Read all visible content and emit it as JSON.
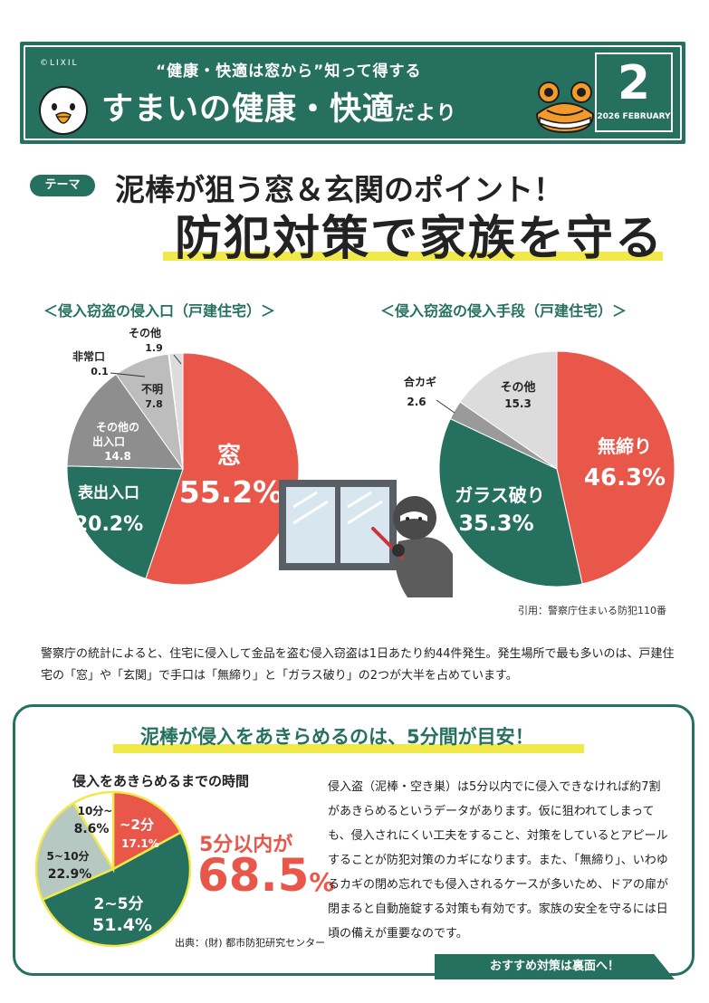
{
  "header": {
    "brand": "©LIXIL",
    "subtitle": "“健康・快適は窓から”知って得する",
    "title_main": "すまいの健康・快適",
    "title_small": "だより",
    "issue_number": "2",
    "issue_date": "2026 FEBRUARY",
    "accent_color": "#26705f"
  },
  "theme": {
    "tag": "テーマ",
    "headline_line1": "泥棒が狙う窓＆玄関のポイント！",
    "headline_line2": "防犯対策で家族を守る"
  },
  "chart_data": [
    {
      "type": "pie",
      "title": "＜侵入窃盗の侵入口（戸建住宅）＞",
      "unit": "%",
      "slices": [
        {
          "label": "窓",
          "value": 55.2,
          "color": "#e8574a"
        },
        {
          "label": "表出入口",
          "value": 20.2,
          "color": "#26705f"
        },
        {
          "label": "その他の出入口",
          "value": 14.8,
          "color": "#8e8e8e"
        },
        {
          "label": "不明",
          "value": 7.8,
          "color": "#bdbdbd"
        },
        {
          "label": "非常口",
          "value": 0.1,
          "color": "#a8a8a8"
        },
        {
          "label": "その他",
          "value": 1.9,
          "color": "#dcdcdc"
        }
      ]
    },
    {
      "type": "pie",
      "title": "＜侵入窃盗の侵入手段（戸建住宅）＞",
      "unit": "%",
      "slices": [
        {
          "label": "無締り",
          "value": 46.3,
          "color": "#e8574a"
        },
        {
          "label": "ガラス破り",
          "value": 35.3,
          "color": "#26705f"
        },
        {
          "label": "合カギ",
          "value": 2.6,
          "color": "#9a9a9a"
        },
        {
          "label": "その他",
          "value": 15.3,
          "color": "#dcdcdc"
        }
      ]
    },
    {
      "type": "pie",
      "title": "侵入をあきらめるまでの時間",
      "unit": "%",
      "slices": [
        {
          "label": "~2分",
          "value": 17.1,
          "color": "#e8574a"
        },
        {
          "label": "2~5分",
          "value": 51.4,
          "color": "#26705f"
        },
        {
          "label": "5~10分",
          "value": 22.9,
          "color": "#b5c8c1"
        },
        {
          "label": "10分~",
          "value": 8.6,
          "color": "#ffffff"
        }
      ]
    }
  ],
  "source1": "引用：警察庁住まいる防犯110番",
  "paragraph1": "警察庁の統計によると、住宅に侵入して金品を盗む侵入窃盗は1日あたり約44件発生。発生場所で最も多いのは、戸建住宅の「窓」や「玄関」で手口は「無締り」と「ガラス破り」の2つが大半を占めています。",
  "section2": {
    "title": "泥棒が侵入をあきらめるのは、5分間が目安！",
    "big_label": "5分以内が",
    "big_value": "68.5",
    "big_unit": "%",
    "source": "出典：(財) 都市防犯研究センター",
    "paragraph": "侵入盗（泥棒・空き巣）は5分以内でに侵入できなければ約7割があきらめるというデータがあります。仮に狙われてしまっても、侵入されにくい工夫をすること、対策をしているとアピールすることが防犯対策のカギになります。また、「無締り」、いわゆるカギの閉め忘れでも侵入されるケースが多いため、ドアの扉が閉まると自動施錠する対策も有効です。家族の安全を守るには日頃の備えが重要なのです。",
    "banner": "おすすめ対策は裏面へ！"
  }
}
